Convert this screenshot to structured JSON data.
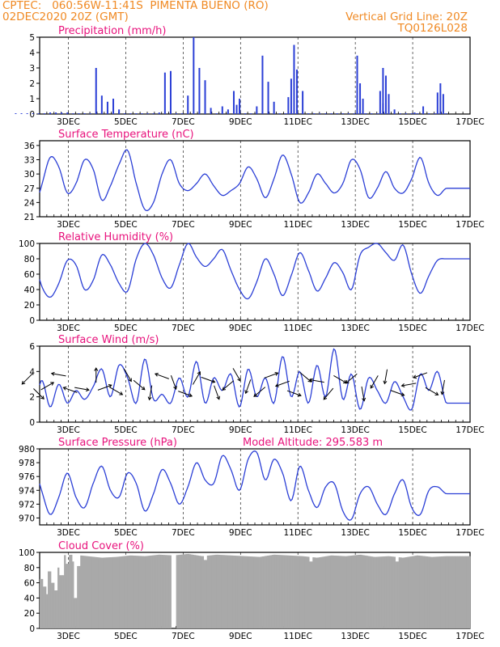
{
  "header": {
    "line1": "CPTEC:   060:56W-11:41S  PIMENTA BUENO (RO)",
    "line2": "02DEC2020 20Z (GMT)",
    "grid_note": "Vertical Grid Line: 20Z",
    "code": "TQ0126L028",
    "model_altitude": "Model Altitude: 295.583 m"
  },
  "colors": {
    "header": "#f08a24",
    "title": "#e8127c",
    "series": "#2b3fd6",
    "bar": "#2b3fd6",
    "cloud": "#a9a9a9",
    "arrow": "#000000",
    "grid": "#000000"
  },
  "x_axis": {
    "start": "02DEC2020 20Z",
    "ticks": [
      "3DEC",
      "5DEC",
      "7DEC",
      "9DEC",
      "11DEC",
      "13DEC",
      "15DEC",
      "17DEC"
    ]
  },
  "chart_data": [
    {
      "type": "bar",
      "title": "Precipitation (mm/h)",
      "ylim": [
        0,
        5
      ],
      "yticks": [
        0,
        1,
        2,
        3,
        4,
        5
      ],
      "grid": "dashed vertical",
      "x_days": [
        2.0,
        2.2,
        2.4,
        2.6,
        2.8,
        3.0,
        3.2,
        3.4,
        3.6,
        3.8,
        4.0,
        4.2,
        4.4,
        4.6,
        4.8,
        5.0,
        5.2,
        5.4,
        5.6,
        5.8,
        6.0,
        6.2,
        6.4,
        6.6,
        6.8,
        7.0,
        7.2,
        7.4,
        7.6,
        7.8,
        8.0,
        8.2,
        8.4,
        8.6,
        8.8,
        9.0,
        9.2,
        9.4,
        9.6,
        9.8,
        10.0,
        10.2,
        10.4,
        10.6,
        10.8,
        11.0,
        11.2,
        11.4,
        11.6,
        11.8,
        12.0,
        12.2,
        12.4,
        12.6,
        12.8,
        13.0,
        13.2,
        13.4,
        13.6,
        13.8,
        14.0,
        14.2,
        14.4,
        14.6,
        14.8,
        15.0,
        15.2,
        15.4,
        15.6,
        15.8,
        16.0,
        16.2,
        16.4,
        16.6,
        16.8,
        17.0
      ],
      "values": [
        0.05,
        0.05,
        0.05,
        0.05,
        0.05,
        0.05,
        0.1,
        0.1,
        0.1,
        0.1,
        0.05,
        0.05,
        0.05,
        0.05,
        3.0,
        1.2,
        0.8,
        1.0,
        0.3,
        0.05,
        0.05,
        0.05,
        0.05,
        0.05,
        0.05,
        0.1,
        2.7,
        2.8,
        0.05,
        0.05,
        1.2,
        5.0,
        3.0,
        2.2,
        0.4,
        0.05,
        0.5,
        0.3,
        1.5,
        1.0,
        0.05,
        0.05,
        0.5,
        3.8,
        2.1,
        0.8,
        0.05,
        0.05,
        0.05,
        0.1,
        0.05,
        0.05,
        0.05,
        0.05,
        0.05,
        0.05,
        0.05,
        0.05,
        0.05,
        0.05,
        0.05,
        0.05,
        0.05,
        0.05,
        0.7,
        0.6,
        0.3,
        0.05,
        0.05,
        0.05,
        0.05,
        0.05,
        0.05,
        0.05,
        0.05,
        0.05
      ],
      "extra_events": [
        [
          9.7,
          0.6
        ],
        [
          9.8,
          0.8
        ],
        [
          11.5,
          1.1
        ],
        [
          11.6,
          2.3
        ],
        [
          11.7,
          4.5
        ],
        [
          11.8,
          2.9
        ],
        [
          12.0,
          1.5
        ],
        [
          13.9,
          3.8
        ],
        [
          14.0,
          2.0
        ],
        [
          14.1,
          1.0
        ],
        [
          14.7,
          1.5
        ],
        [
          14.8,
          3.0
        ],
        [
          14.9,
          2.5
        ],
        [
          15.0,
          1.3
        ],
        [
          15.9,
          0.1
        ],
        [
          16.2,
          0.5
        ],
        [
          16.7,
          1.4
        ],
        [
          16.8,
          2.0
        ],
        [
          16.9,
          1.3
        ]
      ]
    },
    {
      "type": "line",
      "title": "Surface Temperature (nC)",
      "ylim": [
        21,
        37
      ],
      "yticks": [
        21,
        24,
        27,
        30,
        33,
        36
      ],
      "x_days": [
        2.0,
        2.3,
        2.6,
        2.9,
        3.2,
        3.5,
        3.8,
        4.1,
        4.4,
        4.7,
        5.0,
        5.3,
        5.6,
        5.9,
        6.2,
        6.5,
        6.8,
        7.1,
        7.4,
        7.7,
        8.0,
        8.3,
        8.6,
        8.9,
        9.2,
        9.5,
        9.8,
        10.1,
        10.4,
        10.7,
        11.0,
        11.3,
        11.6,
        11.9,
        12.2,
        12.5,
        12.8,
        13.1,
        13.4,
        13.7,
        14.0,
        14.3,
        14.6,
        14.9,
        15.2,
        15.5,
        15.8,
        16.1,
        16.4,
        16.7,
        17.0
      ],
      "values": [
        25,
        22.5,
        21.8,
        27.5,
        33.5,
        31.5,
        26,
        28,
        33,
        31,
        24.5,
        27.5,
        32,
        35,
        28,
        22.5,
        24,
        30,
        33,
        28,
        26.5,
        28,
        30,
        27.5,
        25.5,
        26.5,
        28,
        31.5,
        29,
        25,
        29,
        34,
        30,
        24,
        26,
        30,
        28,
        26,
        28,
        33,
        31,
        25,
        27,
        30.5,
        27,
        26,
        29,
        33.5,
        28,
        25.5,
        27
      ]
    },
    {
      "type": "line",
      "title": "Relative Humidity (%)",
      "ylim": [
        0,
        100
      ],
      "yticks": [
        0,
        20,
        40,
        60,
        80,
        100
      ],
      "x_days": [
        2.0,
        2.3,
        2.6,
        2.9,
        3.2,
        3.5,
        3.8,
        4.1,
        4.4,
        4.7,
        5.0,
        5.3,
        5.6,
        5.9,
        6.2,
        6.5,
        6.8,
        7.1,
        7.4,
        7.7,
        8.0,
        8.3,
        8.6,
        8.9,
        9.2,
        9.5,
        9.8,
        10.1,
        10.4,
        10.7,
        11.0,
        11.3,
        11.6,
        11.9,
        12.2,
        12.5,
        12.8,
        13.1,
        13.4,
        13.7,
        14.0,
        14.3,
        14.6,
        14.9,
        15.2,
        15.5,
        15.8,
        16.1,
        16.4,
        16.7,
        17.0
      ],
      "values": [
        68,
        82,
        85,
        45,
        30,
        48,
        78,
        72,
        40,
        52,
        85,
        72,
        48,
        38,
        80,
        100,
        85,
        55,
        42,
        72,
        100,
        82,
        70,
        80,
        92,
        65,
        40,
        28,
        50,
        80,
        60,
        32,
        58,
        88,
        65,
        38,
        55,
        75,
        62,
        40,
        85,
        95,
        100,
        88,
        78,
        98,
        60,
        35,
        58,
        78,
        80
      ]
    },
    {
      "type": "line",
      "title": "Surface Wind (m/s)",
      "ylim": [
        0,
        6
      ],
      "yticks": [
        0,
        2,
        4,
        6
      ],
      "x_days": [
        2.0,
        2.3,
        2.6,
        2.9,
        3.2,
        3.5,
        3.8,
        4.1,
        4.4,
        4.7,
        5.0,
        5.3,
        5.6,
        5.9,
        6.2,
        6.5,
        6.8,
        7.1,
        7.4,
        7.7,
        8.0,
        8.3,
        8.6,
        8.9,
        9.2,
        9.5,
        9.8,
        10.1,
        10.4,
        10.7,
        11.0,
        11.3,
        11.6,
        11.9,
        12.2,
        12.5,
        12.8,
        13.1,
        13.4,
        13.7,
        14.0,
        14.3,
        14.6,
        14.9,
        15.2,
        15.5,
        15.8,
        16.1,
        16.4,
        16.7,
        17.0
      ],
      "values": [
        2.2,
        1.5,
        0.5,
        3.3,
        1.2,
        3.0,
        1.5,
        2.5,
        1.8,
        2.8,
        4.2,
        2.0,
        4.5,
        3.5,
        1.5,
        5.0,
        1.8,
        2.2,
        1.5,
        3.5,
        2.0,
        4.8,
        1.5,
        3.5,
        2.5,
        3.8,
        1.2,
        4.2,
        2.0,
        3.5,
        1.5,
        5.2,
        2.0,
        4.0,
        1.5,
        4.5,
        2.0,
        5.8,
        1.8,
        3.8,
        1.0,
        3.5,
        2.5,
        1.5,
        3.2,
        2.0,
        1.0,
        3.8,
        2.5,
        4.0,
        1.5
      ],
      "arrows": [
        [
          2.4,
          -135
        ],
        [
          2.8,
          -45
        ],
        [
          3.1,
          30
        ],
        [
          3.5,
          170
        ],
        [
          3.9,
          160
        ],
        [
          4.3,
          -10
        ],
        [
          4.8,
          90
        ],
        [
          5.1,
          20
        ],
        [
          5.5,
          -30
        ],
        [
          5.9,
          -60
        ],
        [
          6.3,
          -40
        ],
        [
          6.7,
          -100
        ],
        [
          7.1,
          160
        ],
        [
          7.5,
          -70
        ],
        [
          7.9,
          -20
        ],
        [
          8.3,
          60
        ],
        [
          8.7,
          -20
        ],
        [
          9.0,
          -70
        ],
        [
          9.4,
          -140
        ],
        [
          9.7,
          -60
        ],
        [
          10.1,
          -110
        ],
        [
          10.5,
          -140
        ],
        [
          10.9,
          20
        ],
        [
          11.3,
          -160
        ],
        [
          11.7,
          -20
        ],
        [
          12.1,
          -40
        ],
        [
          12.5,
          170
        ],
        [
          12.9,
          -130
        ],
        [
          13.3,
          -30
        ],
        [
          13.7,
          -140
        ],
        [
          14.1,
          -80
        ],
        [
          14.5,
          -120
        ],
        [
          14.9,
          -100
        ],
        [
          15.3,
          -20
        ],
        [
          15.7,
          -170
        ],
        [
          16.1,
          -160
        ],
        [
          16.5,
          -30
        ],
        [
          16.9,
          -100
        ]
      ]
    },
    {
      "type": "line",
      "title": "Surface Pressure (hPa)",
      "ylim": [
        969,
        980
      ],
      "yticks": [
        970,
        972,
        974,
        976,
        978,
        980
      ],
      "x_days": [
        2.0,
        2.3,
        2.6,
        2.9,
        3.2,
        3.5,
        3.8,
        4.1,
        4.4,
        4.7,
        5.0,
        5.3,
        5.6,
        5.9,
        6.2,
        6.5,
        6.8,
        7.1,
        7.4,
        7.7,
        8.0,
        8.3,
        8.6,
        8.9,
        9.2,
        9.5,
        9.8,
        10.1,
        10.4,
        10.7,
        11.0,
        11.3,
        11.6,
        11.9,
        12.2,
        12.5,
        12.8,
        13.1,
        13.4,
        13.7,
        14.0,
        14.3,
        14.6,
        14.9,
        15.2,
        15.5,
        15.8,
        16.1,
        16.4,
        16.7,
        17.0
      ],
      "values": [
        976,
        977,
        978,
        974,
        970.5,
        973,
        976.5,
        973,
        971.5,
        975,
        977.5,
        974,
        973,
        976.5,
        975,
        971,
        973.5,
        977,
        975,
        972,
        974.5,
        978,
        975.5,
        975,
        979,
        977,
        974,
        978.5,
        979.5,
        975.5,
        978.5,
        976.5,
        972.5,
        977.5,
        974,
        971.5,
        974.5,
        975,
        971,
        969.8,
        973.5,
        974.5,
        972,
        970.5,
        973.5,
        975.5,
        971.5,
        970.5,
        974,
        974.5,
        973.5
      ]
    },
    {
      "type": "bar",
      "title": "Cloud Cover (%)",
      "ylim": [
        0,
        100
      ],
      "yticks": [
        0,
        20,
        40,
        60,
        80,
        100
      ],
      "x_days": [
        2.0,
        2.5,
        3.0,
        3.5,
        4.0,
        4.5,
        5.0,
        5.5,
        6.0,
        6.5,
        7.0,
        7.5,
        8.0,
        8.5,
        9.0,
        9.5,
        10.0,
        10.5,
        11.0,
        11.5,
        12.0,
        12.5,
        13.0,
        13.5,
        14.0,
        14.5,
        15.0,
        15.5,
        16.0,
        16.5,
        17.0
      ],
      "values": [
        94,
        92,
        95,
        96,
        97,
        95,
        93,
        94,
        96,
        95,
        97,
        96,
        98,
        95,
        97,
        96,
        95,
        94,
        97,
        96,
        95,
        93,
        96,
        95,
        97,
        94,
        95,
        93,
        96,
        94,
        95
      ],
      "dips": [
        [
          2.1,
          40
        ],
        [
          2.2,
          55
        ],
        [
          2.3,
          35
        ],
        [
          2.4,
          60
        ],
        [
          2.5,
          45
        ],
        [
          2.6,
          70
        ],
        [
          2.7,
          50
        ],
        [
          2.8,
          40
        ],
        [
          2.9,
          65
        ],
        [
          3.0,
          55
        ],
        [
          3.1,
          45
        ],
        [
          3.2,
          75
        ],
        [
          3.3,
          60
        ],
        [
          3.4,
          50
        ],
        [
          3.5,
          80
        ],
        [
          3.6,
          70
        ],
        [
          3.8,
          85
        ],
        [
          4.0,
          88
        ],
        [
          4.1,
          40
        ],
        [
          4.2,
          82
        ],
        [
          7.5,
          0
        ],
        [
          8.6,
          90
        ],
        [
          12.3,
          88
        ],
        [
          15.3,
          88
        ]
      ]
    }
  ]
}
